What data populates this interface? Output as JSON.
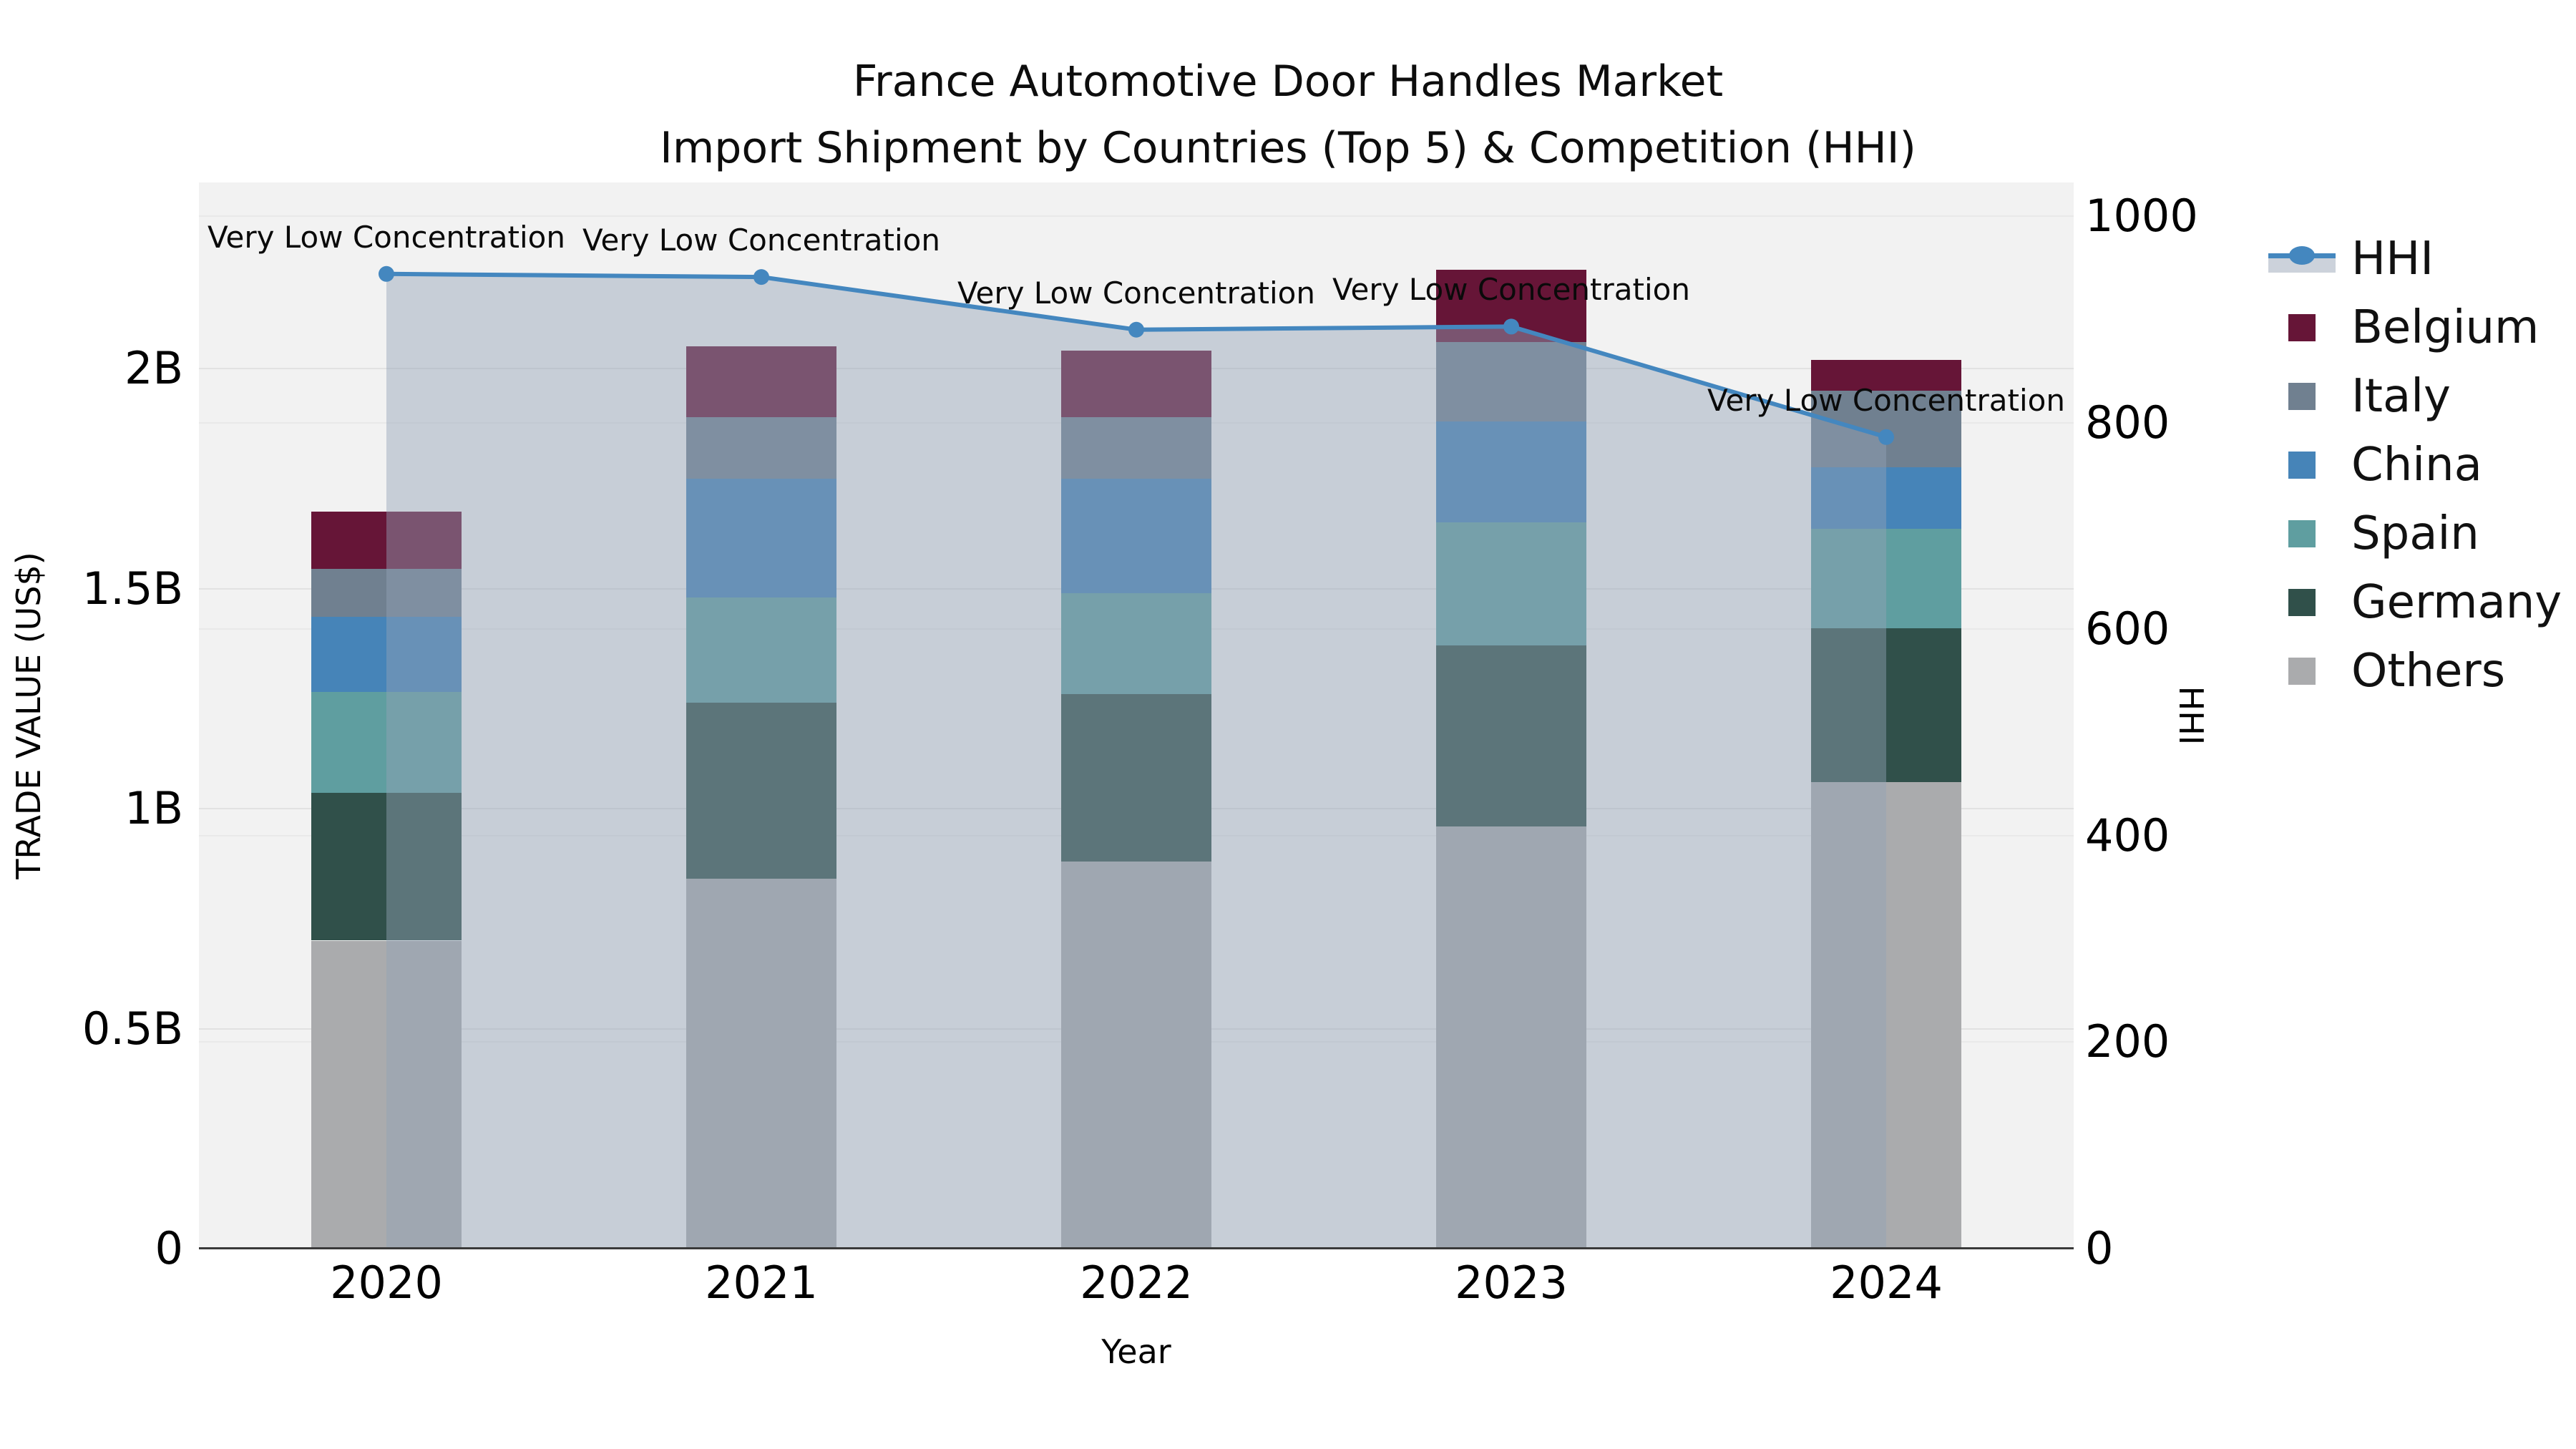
{
  "chart_data": {
    "type": "bar+line",
    "title": "France Automotive Door Handles Market",
    "subtitle": "Import Shipment by Countries (Top 5) & Competition (HHI)",
    "xlabel": "Year",
    "ylabel": "TRADE VALUE (US$)",
    "y2label": "HHI",
    "categories": [
      "2020",
      "2021",
      "2022",
      "2023",
      "2024"
    ],
    "value_unit": "billions of US$",
    "series": [
      {
        "name": "Others",
        "color": "#aaabad",
        "values": [
          0.7,
          0.84,
          0.88,
          0.96,
          1.06
        ]
      },
      {
        "name": "Germany",
        "color": "#30504a",
        "values": [
          0.335,
          0.4,
          0.38,
          0.41,
          0.35
        ]
      },
      {
        "name": "Spain",
        "color": "#5f9ea0",
        "values": [
          0.23,
          0.24,
          0.23,
          0.28,
          0.225
        ]
      },
      {
        "name": "China",
        "color": "#4684b8",
        "values": [
          0.17,
          0.27,
          0.26,
          0.23,
          0.14
        ]
      },
      {
        "name": "Italy",
        "color": "#708090",
        "values": [
          0.11,
          0.14,
          0.14,
          0.18,
          0.175
        ]
      },
      {
        "name": "Belgium",
        "color": "#661537",
        "values": [
          0.13,
          0.16,
          0.15,
          0.165,
          0.07
        ]
      }
    ],
    "line_series": {
      "name": "HHI",
      "color": "#4487bf",
      "fill_color": "#93a1b5",
      "values": [
        944,
        941,
        890,
        893,
        786
      ]
    },
    "annotations": [
      {
        "text": "Very Low Concentration",
        "category": "2020"
      },
      {
        "text": "Very Low Concentration",
        "category": "2021"
      },
      {
        "text": "Very Low Concentration",
        "category": "2022"
      },
      {
        "text": "Very Low Concentration",
        "category": "2023"
      },
      {
        "text": "Very Low Concentration",
        "category": "2024"
      }
    ],
    "y_axis": {
      "ticks": [
        {
          "label": "0",
          "value": 0
        },
        {
          "label": "0.5B",
          "value": 0.5
        },
        {
          "label": "1B",
          "value": 1
        },
        {
          "label": "1.5B",
          "value": 1.5
        },
        {
          "label": "2B",
          "value": 2
        }
      ],
      "range": [
        0,
        2.42
      ]
    },
    "y2_axis": {
      "ticks": [
        {
          "label": "0",
          "value": 0
        },
        {
          "label": "200",
          "value": 200
        },
        {
          "label": "400",
          "value": 400
        },
        {
          "label": "600",
          "value": 600
        },
        {
          "label": "800",
          "value": 800
        },
        {
          "label": "1000",
          "value": 1000
        }
      ],
      "range": [
        0,
        1032
      ]
    },
    "legend": {
      "items": [
        {
          "label": "HHI",
          "type": "line",
          "color": "#4487bf"
        },
        {
          "label": "Belgium",
          "type": "swatch",
          "color": "#661537"
        },
        {
          "label": "Italy",
          "type": "swatch",
          "color": "#708090"
        },
        {
          "label": "China",
          "type": "swatch",
          "color": "#4684b8"
        },
        {
          "label": "Spain",
          "type": "swatch",
          "color": "#5f9ea0"
        },
        {
          "label": "Germany",
          "type": "swatch",
          "color": "#30504a"
        },
        {
          "label": "Others",
          "type": "swatch",
          "color": "#aaabad"
        }
      ]
    }
  }
}
